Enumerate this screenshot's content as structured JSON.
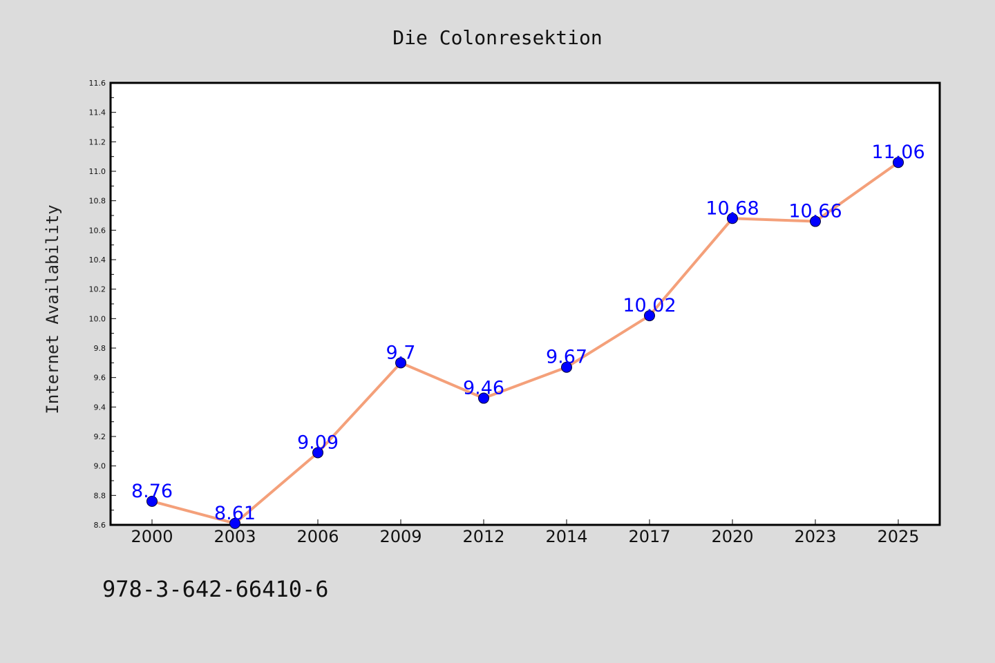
{
  "footer": {
    "text": "978-3-642-66410-6"
  },
  "colors": {
    "background": "#dcdcdc",
    "plot_background": "#ffffff",
    "line": "#f4a07a",
    "marker": "#0000ff",
    "label": "#0000ff"
  },
  "chart_data": {
    "type": "line",
    "title": "Die Colonresektion",
    "xlabel": "",
    "ylabel": "Internet Availability",
    "categories": [
      "2000",
      "2003",
      "2006",
      "2009",
      "2012",
      "2014",
      "2017",
      "2020",
      "2023",
      "2025"
    ],
    "series": [
      {
        "values": [
          8.76,
          8.61,
          9.09,
          9.7,
          9.46,
          9.67,
          10.02,
          10.68,
          10.66,
          11.06
        ],
        "labels": [
          "8.76",
          "8.61",
          "9.09",
          "9.7",
          "9.46",
          "9.67",
          "10.02",
          "10.68",
          "10.66",
          "11.06"
        ]
      }
    ],
    "ylim": [
      8.6,
      11.6
    ],
    "yticks": [
      "8.6",
      "8.8",
      "9.0",
      "9.2",
      "9.4",
      "9.6",
      "9.8",
      "10.0",
      "10.2",
      "10.4",
      "10.6",
      "10.8",
      "11.0",
      "11.2",
      "11.4",
      "11.6"
    ],
    "grid": false,
    "legend": "none"
  }
}
